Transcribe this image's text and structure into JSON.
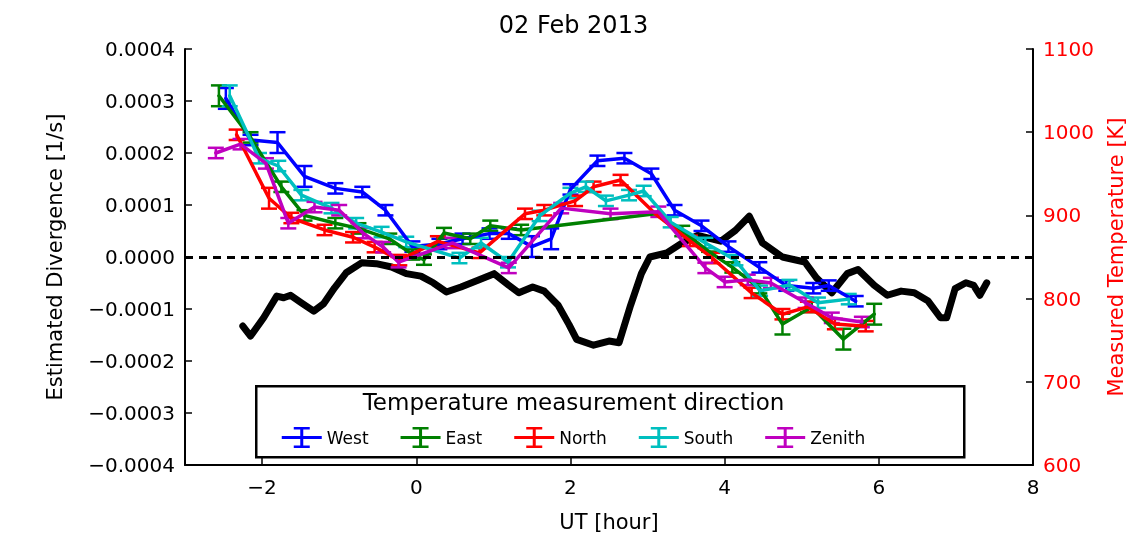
{
  "chart_data": {
    "type": "line",
    "title": "02 Feb 2013",
    "xlabel": "UT [hour]",
    "ylabel": "Estimated Divergence [1/s]",
    "y2label": "Measured Temperature [K]",
    "legend_title": "Temperature measurement direction",
    "xlim": [
      -3,
      8
    ],
    "xticks": [
      {
        "value": -2,
        "label": "−2"
      },
      0,
      2,
      4,
      6,
      8
    ],
    "ylim": [
      -0.0004,
      0.0004
    ],
    "yticks": [
      {
        "value": -0.0004,
        "label": "−0.0004"
      },
      {
        "value": -0.0003,
        "label": "−0.0003"
      },
      {
        "value": -0.0002,
        "label": "−0.0002"
      },
      {
        "value": -0.0001,
        "label": "−0.0001"
      },
      {
        "value": 0,
        "label": "0.0000"
      },
      {
        "value": 0.0001,
        "label": "0.0001"
      },
      {
        "value": 0.0002,
        "label": "0.0002"
      },
      {
        "value": 0.0003,
        "label": "0.0003"
      },
      {
        "value": 0.0004,
        "label": "0.0004"
      }
    ],
    "y2lim": [
      600,
      1100
    ],
    "y2ticks": [
      600,
      700,
      800,
      900,
      1000,
      1100
    ],
    "grid": false,
    "legend": "bottom",
    "marker": "none",
    "line_style": "solid",
    "ref_lines": [
      {
        "axis": "y",
        "value": 0,
        "color": "#000000",
        "line_style": "dashed"
      }
    ],
    "series": [
      {
        "name": "West",
        "color": "#0000ff",
        "x": [
          -2.47,
          -2.15,
          -1.8,
          -1.45,
          -1.05,
          -0.7,
          -0.4,
          -0.05,
          0.3,
          0.6,
          0.95,
          1.2,
          1.5,
          1.75,
          2.0,
          2.35,
          2.7,
          3.05,
          3.35,
          3.7,
          4.05,
          4.45,
          4.8,
          5.15,
          5.35,
          5.7
        ],
        "values": [
          0.000305,
          0.000225,
          0.00022,
          0.000155,
          0.000132,
          0.000125,
          9e-05,
          2e-05,
          2.5e-05,
          3.5e-05,
          4.5e-05,
          4.5e-05,
          2e-05,
          3.5e-05,
          0.00013,
          0.000185,
          0.00019,
          0.00016,
          9e-05,
          6e-05,
          2e-05,
          -2e-05,
          -5.5e-05,
          -6e-05,
          -5.5e-05,
          -8.5e-05
        ],
        "errors": [
          2e-05,
          1e-05,
          2e-05,
          2e-05,
          1e-05,
          1e-05,
          1e-05,
          1e-05,
          1e-05,
          1e-05,
          1e-05,
          1e-05,
          2e-05,
          2e-05,
          1e-05,
          1e-05,
          1e-05,
          1e-05,
          1e-05,
          1e-05,
          1e-05,
          1e-05,
          1e-05,
          1e-05,
          1e-05,
          1e-05
        ]
      },
      {
        "name": "East",
        "color": "#008000",
        "x": [
          -2.56,
          -2.15,
          -1.75,
          -1.45,
          -1.05,
          -0.75,
          -0.35,
          -0.05,
          0.1,
          0.36,
          0.7,
          0.96,
          1.36,
          3.1,
          3.45,
          3.8,
          4.1,
          4.45,
          4.75,
          5.13,
          5.54,
          5.94
        ],
        "values": [
          0.00031,
          0.00023,
          0.000135,
          8e-05,
          6.5e-05,
          5.5e-05,
          3.5e-05,
          5e-06,
          -5e-06,
          4.6e-05,
          3.5e-05,
          6e-05,
          5.2e-05,
          8.3e-05,
          5e-05,
          1e-05,
          -2e-05,
          -6e-05,
          -0.000129,
          -9.6e-05,
          -0.000158,
          -0.00011
        ],
        "errors": [
          2e-05,
          1e-05,
          1e-05,
          1e-05,
          1e-05,
          1e-05,
          1e-05,
          1e-05,
          1e-05,
          1e-05,
          1e-05,
          1e-05,
          1e-05,
          null,
          1e-05,
          null,
          1e-05,
          1e-05,
          2e-05,
          1e-05,
          2e-05,
          2e-05
        ]
      },
      {
        "name": "North",
        "color": "#ff0000",
        "x": [
          -2.33,
          -1.91,
          -1.62,
          -1.19,
          -0.82,
          -0.54,
          -0.22,
          0.28,
          0.82,
          1.41,
          1.66,
          2.06,
          2.3,
          2.65,
          3.1,
          3.55,
          3.84,
          4.35,
          4.75,
          5.08,
          5.43,
          5.83
        ],
        "values": [
          0.000235,
          0.000113,
          7.5e-05,
          5.2e-05,
          3.8e-05,
          1.9e-05,
          -6e-06,
          3e-05,
          8e-06,
          8.3e-05,
          9e-05,
          0.000108,
          0.000135,
          0.000148,
          8.3e-05,
          3.1e-05,
          -2e-06,
          -6.9e-05,
          -0.00011,
          -9.6e-05,
          -0.000129,
          -0.000133
        ],
        "errors": [
          1e-05,
          2e-05,
          1e-05,
          1e-05,
          1e-05,
          1e-05,
          1e-05,
          1e-05,
          1e-05,
          1e-05,
          1e-05,
          1e-05,
          1e-05,
          1e-05,
          null,
          1e-05,
          1e-05,
          1e-05,
          1e-05,
          1e-05,
          1e-05,
          1e-05
        ]
      },
      {
        "name": "South",
        "color": "#00bfbf",
        "x": [
          -2.42,
          -2.04,
          -1.79,
          -1.49,
          -1.1,
          -0.78,
          -0.45,
          -0.13,
          0.56,
          0.84,
          1.19,
          1.6,
          2.0,
          2.2,
          2.46,
          2.76,
          2.95,
          3.3,
          3.75,
          4.14,
          4.46,
          4.84,
          5.21,
          5.61
        ],
        "values": [
          0.00031,
          0.00019,
          0.000175,
          0.000119,
          9.4e-05,
          6.5e-05,
          4.8e-05,
          2.9e-05,
          -2e-06,
          2.7e-05,
          -1e-05,
          7.9e-05,
          0.000123,
          0.000135,
          0.000108,
          0.000119,
          0.000127,
          6.7e-05,
          2.7e-05,
          -6e-06,
          -6.5e-05,
          -5.4e-05,
          -8.8e-05,
          -8.1e-05
        ],
        "errors": [
          2e-05,
          1e-05,
          1e-05,
          1e-05,
          1e-05,
          1e-05,
          1e-05,
          1e-05,
          1e-05,
          1e-05,
          1e-05,
          1e-05,
          1e-05,
          1e-05,
          1e-05,
          1e-05,
          1e-05,
          1e-05,
          1e-05,
          1e-05,
          1e-05,
          1e-05,
          1e-05,
          1e-05
        ]
      },
      {
        "name": "Zenith",
        "color": "#bf00bf",
        "x": [
          -2.6,
          -2.28,
          -1.95,
          -1.66,
          -1.32,
          -1.0,
          -0.69,
          -0.43,
          -0.23,
          0.47,
          1.2,
          1.88,
          2.52,
          3.14,
          3.75,
          4.0,
          4.3,
          4.6,
          5.05,
          5.39,
          5.78
        ],
        "values": [
          0.0002,
          0.000217,
          0.00018,
          6.5e-05,
          9.6e-05,
          9e-05,
          4.6e-05,
          1.9e-05,
          -1e-05,
          2.7e-05,
          -2.1e-05,
          9.4e-05,
          8.3e-05,
          8.7e-05,
          -2.1e-05,
          -4.8e-05,
          -4.4e-05,
          -5e-05,
          -8.8e-05,
          -0.000117,
          -0.000125
        ],
        "errors": [
          1e-05,
          1e-05,
          1e-05,
          1e-05,
          1e-05,
          1e-05,
          1e-05,
          1e-05,
          1e-05,
          1e-05,
          1e-05,
          1e-05,
          1e-05,
          1e-05,
          1e-05,
          1e-05,
          1e-05,
          1e-05,
          1e-05,
          1e-05,
          1e-05
        ]
      },
      {
        "color": "#000000",
        "axis": "y2",
        "x": [
          -2.25,
          -2.15,
          -1.98,
          -1.81,
          -1.72,
          -1.63,
          -1.49,
          -1.33,
          -1.2,
          -1.06,
          -0.91,
          -0.71,
          -0.52,
          -0.32,
          -0.13,
          0.06,
          0.22,
          0.39,
          0.58,
          0.8,
          1.01,
          1.2,
          1.33,
          1.51,
          1.66,
          1.84,
          1.98,
          2.08,
          2.3,
          2.5,
          2.63,
          2.78,
          2.92,
          3.03,
          3.25,
          3.45,
          3.65,
          3.95,
          4.14,
          4.32,
          4.49,
          4.75,
          5.04,
          5.19,
          5.39,
          5.59,
          5.73,
          5.94,
          6.11,
          6.29,
          6.46,
          6.64,
          6.8,
          6.88,
          6.99,
          7.13,
          7.23,
          7.31,
          7.4
        ],
        "values": [
          767,
          755,
          777,
          803,
          801,
          804,
          795,
          785,
          794,
          813,
          831,
          843,
          842,
          838,
          830,
          827,
          819,
          808,
          814,
          822,
          830,
          816,
          807,
          814,
          809,
          792,
          769,
          751,
          744,
          749,
          747,
          792,
          830,
          850,
          855,
          867,
          876,
          869,
          882,
          899,
          867,
          850,
          844,
          825,
          807,
          830,
          835,
          816,
          804,
          809,
          807,
          797,
          777,
          777,
          812,
          819,
          816,
          804,
          819
        ]
      }
    ]
  }
}
